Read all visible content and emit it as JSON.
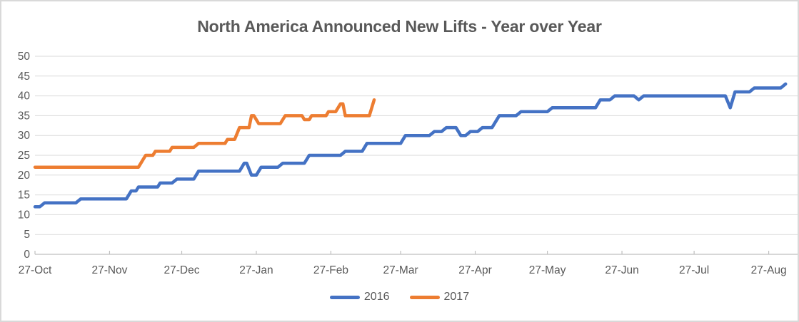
{
  "title": "North America Announced New Lifts - Year over Year",
  "colors": {
    "series_2016": "#4472C4",
    "series_2017": "#ED7D31",
    "gridline": "#D9D9D9",
    "axis_line": "#BFBFBF",
    "text": "#595959",
    "chart_border": "#D9D9D9",
    "background": "#FFFFFF"
  },
  "chart_data": {
    "type": "line",
    "title": "North America Announced New Lifts - Year over Year",
    "xlabel": "",
    "ylabel": "",
    "grid": "horizontal",
    "legend_position": "bottom",
    "y_axis": {
      "min": 0,
      "max": 50,
      "step": 5,
      "tick_labels": [
        "0",
        "5",
        "10",
        "15",
        "20",
        "25",
        "30",
        "35",
        "40",
        "45",
        "50"
      ]
    },
    "x_axis": {
      "tick_labels": [
        "27-Oct",
        "27-Nov",
        "27-Dec",
        "27-Jan",
        "27-Feb",
        "27-Mar",
        "27-Apr",
        "27-May",
        "27-Jun",
        "27-Jul",
        "27-Aug"
      ],
      "tick_days": [
        0,
        31,
        61,
        92,
        123,
        152,
        183,
        213,
        244,
        274,
        305
      ],
      "domain_days": [
        0,
        317
      ]
    },
    "series": [
      {
        "name": "2016",
        "color": "#4472C4",
        "points_day_value": [
          [
            0,
            12
          ],
          [
            2,
            12
          ],
          [
            4,
            13
          ],
          [
            17,
            13
          ],
          [
            19,
            14
          ],
          [
            38,
            14
          ],
          [
            39,
            15
          ],
          [
            40,
            16
          ],
          [
            42,
            16
          ],
          [
            43,
            17
          ],
          [
            51,
            17
          ],
          [
            52,
            18
          ],
          [
            57,
            18
          ],
          [
            59,
            19
          ],
          [
            66,
            19
          ],
          [
            68,
            21
          ],
          [
            85,
            21
          ],
          [
            87,
            23
          ],
          [
            88,
            23
          ],
          [
            90,
            20
          ],
          [
            92,
            20
          ],
          [
            94,
            22
          ],
          [
            101,
            22
          ],
          [
            103,
            23
          ],
          [
            112,
            23
          ],
          [
            114,
            25
          ],
          [
            127,
            25
          ],
          [
            129,
            26
          ],
          [
            136,
            26
          ],
          [
            138,
            28
          ],
          [
            152,
            28
          ],
          [
            154,
            30
          ],
          [
            164,
            30
          ],
          [
            166,
            31
          ],
          [
            169,
            31
          ],
          [
            171,
            32
          ],
          [
            175,
            32
          ],
          [
            177,
            30
          ],
          [
            179,
            30
          ],
          [
            181,
            31
          ],
          [
            184,
            31
          ],
          [
            186,
            32
          ],
          [
            190,
            32
          ],
          [
            193,
            35
          ],
          [
            200,
            35
          ],
          [
            202,
            36
          ],
          [
            213,
            36
          ],
          [
            215,
            37
          ],
          [
            233,
            37
          ],
          [
            235,
            39
          ],
          [
            239,
            39
          ],
          [
            241,
            40
          ],
          [
            249,
            40
          ],
          [
            251,
            39
          ],
          [
            253,
            40
          ],
          [
            287,
            40
          ],
          [
            289,
            37
          ],
          [
            291,
            41
          ],
          [
            297,
            41
          ],
          [
            299,
            42
          ],
          [
            310,
            42
          ],
          [
            312,
            43
          ]
        ]
      },
      {
        "name": "2017",
        "color": "#ED7D31",
        "points_day_value": [
          [
            0,
            22
          ],
          [
            43,
            22
          ],
          [
            45,
            24
          ],
          [
            46,
            25
          ],
          [
            49,
            25
          ],
          [
            50,
            26
          ],
          [
            56,
            26
          ],
          [
            57,
            27
          ],
          [
            66,
            27
          ],
          [
            68,
            28
          ],
          [
            79,
            28
          ],
          [
            80,
            29
          ],
          [
            83,
            29
          ],
          [
            85,
            32
          ],
          [
            89,
            32
          ],
          [
            90,
            35
          ],
          [
            91,
            35
          ],
          [
            93,
            33
          ],
          [
            102,
            33
          ],
          [
            104,
            35
          ],
          [
            111,
            35
          ],
          [
            112,
            34
          ],
          [
            114,
            34
          ],
          [
            115,
            35
          ],
          [
            121,
            35
          ],
          [
            122,
            36
          ],
          [
            125,
            36
          ],
          [
            127,
            38
          ],
          [
            128,
            38
          ],
          [
            129,
            35
          ],
          [
            139,
            35
          ],
          [
            141,
            39
          ]
        ]
      }
    ]
  },
  "legend": {
    "entries": [
      "2016",
      "2017"
    ]
  }
}
